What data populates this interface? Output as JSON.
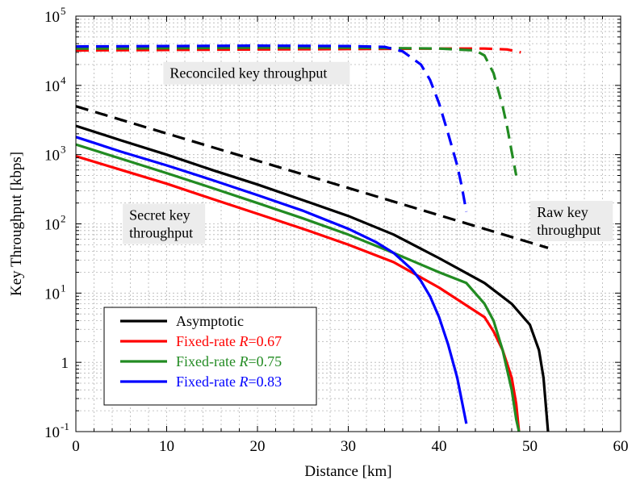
{
  "chart_data": {
    "type": "line",
    "title": "",
    "xlabel": "Distance [km]",
    "ylabel": "Key Throughput [kbps]",
    "xlim": [
      0,
      60
    ],
    "ylim": [
      0.1,
      100000
    ],
    "yscale": "log",
    "grid": true,
    "x_ticks": [
      0,
      10,
      20,
      30,
      40,
      50,
      60
    ],
    "y_ticks": [
      {
        "value": 0.1,
        "base": "10",
        "exp": "-1"
      },
      {
        "value": 1,
        "base": "1",
        "exp": ""
      },
      {
        "value": 10,
        "base": "10",
        "exp": "1"
      },
      {
        "value": 100,
        "base": "10",
        "exp": "2"
      },
      {
        "value": 1000,
        "base": "10",
        "exp": "3"
      },
      {
        "value": 10000,
        "base": "10",
        "exp": "4"
      },
      {
        "value": 100000,
        "base": "10",
        "exp": "5"
      }
    ],
    "series": [
      {
        "name": "Asymptotic",
        "color": "#000000",
        "dash": false,
        "x": [
          0,
          5,
          10,
          15,
          20,
          25,
          30,
          35,
          40,
          45,
          48,
          50,
          51,
          51.5,
          52
        ],
        "y": [
          2600,
          1600,
          1000,
          600,
          370,
          220,
          130,
          70,
          32,
          14,
          7,
          3.5,
          1.5,
          0.6,
          0.1
        ]
      },
      {
        "name": "Fixed-rate R=0.67",
        "color": "#ff0000",
        "dash": false,
        "x": [
          0,
          5,
          10,
          15,
          20,
          25,
          30,
          35,
          40,
          45,
          46,
          47,
          48,
          48.5,
          48.8
        ],
        "y": [
          950,
          600,
          380,
          230,
          140,
          85,
          50,
          28,
          12,
          4.5,
          2.8,
          1.5,
          0.6,
          0.25,
          0.1
        ]
      },
      {
        "name": "Fixed-rate R=0.75",
        "color": "#228b22",
        "dash": false,
        "x": [
          0,
          5,
          10,
          15,
          20,
          25,
          30,
          35,
          40,
          43,
          45,
          46,
          47,
          48,
          48.5,
          48.8
        ],
        "y": [
          1400,
          870,
          540,
          330,
          200,
          120,
          70,
          38,
          20,
          14,
          7,
          4,
          1.5,
          0.4,
          0.15,
          0.1
        ]
      },
      {
        "name": "Fixed-rate R=0.83",
        "color": "#0000ff",
        "dash": false,
        "x": [
          0,
          5,
          10,
          15,
          20,
          25,
          30,
          33,
          35,
          37,
          38,
          39,
          40,
          41,
          42,
          43
        ],
        "y": [
          1800,
          1100,
          700,
          430,
          260,
          155,
          85,
          55,
          38,
          22,
          15,
          9,
          4.5,
          1.8,
          0.6,
          0.13
        ]
      },
      {
        "name": "",
        "color": "#000000",
        "dash": true,
        "x": [
          0,
          52
        ],
        "y": [
          5000,
          45
        ]
      },
      {
        "name": "",
        "color": "#ff0000",
        "dash": true,
        "x": [
          0,
          10,
          20,
          30,
          40,
          45,
          47.5,
          49
        ],
        "y": [
          32000,
          32500,
          33000,
          33500,
          34000,
          34000,
          33000,
          30000
        ]
      },
      {
        "name": "",
        "color": "#228b22",
        "dash": true,
        "x": [
          0,
          10,
          20,
          30,
          40,
          44,
          45,
          46,
          47,
          47.5,
          48,
          48.5
        ],
        "y": [
          34000,
          34500,
          35000,
          35000,
          34000,
          32000,
          27000,
          15000,
          5000,
          2500,
          1100,
          500
        ]
      },
      {
        "name": "",
        "color": "#0000ff",
        "dash": true,
        "x": [
          0,
          10,
          20,
          30,
          34,
          36,
          38,
          39,
          40,
          41,
          42,
          42.5,
          43
        ],
        "y": [
          36500,
          37000,
          37500,
          37000,
          36000,
          31000,
          20000,
          12000,
          5500,
          2000,
          700,
          350,
          150
        ]
      }
    ],
    "annotations": [
      {
        "text": "Reconciled key throughput",
        "x": 19.9,
        "y": 15000,
        "lines": [
          "Reconciled key throughput"
        ]
      },
      {
        "text": "Secret key throughput",
        "x": 9.7,
        "y": 100,
        "lines": [
          "Secret key",
          "throughput"
        ]
      },
      {
        "text": "Raw key throughput",
        "x": 54.6,
        "y": 110,
        "lines": [
          "Raw key",
          "throughput"
        ]
      }
    ],
    "legend": {
      "position": "bottom-left",
      "entries": [
        {
          "prefix": "Asymptotic",
          "var": "",
          "suffix": "",
          "color": "#000000",
          "text_color": "#000000"
        },
        {
          "prefix": "Fixed-rate ",
          "var": "R",
          "suffix": "=0.67",
          "color": "#ff0000",
          "text_color": "#ff0000"
        },
        {
          "prefix": "Fixed-rate ",
          "var": "R",
          "suffix": "=0.75",
          "color": "#228b22",
          "text_color": "#228b22"
        },
        {
          "prefix": "Fixed-rate ",
          "var": "R",
          "suffix": "=0.83",
          "color": "#0000ff",
          "text_color": "#0000ff"
        }
      ]
    }
  }
}
